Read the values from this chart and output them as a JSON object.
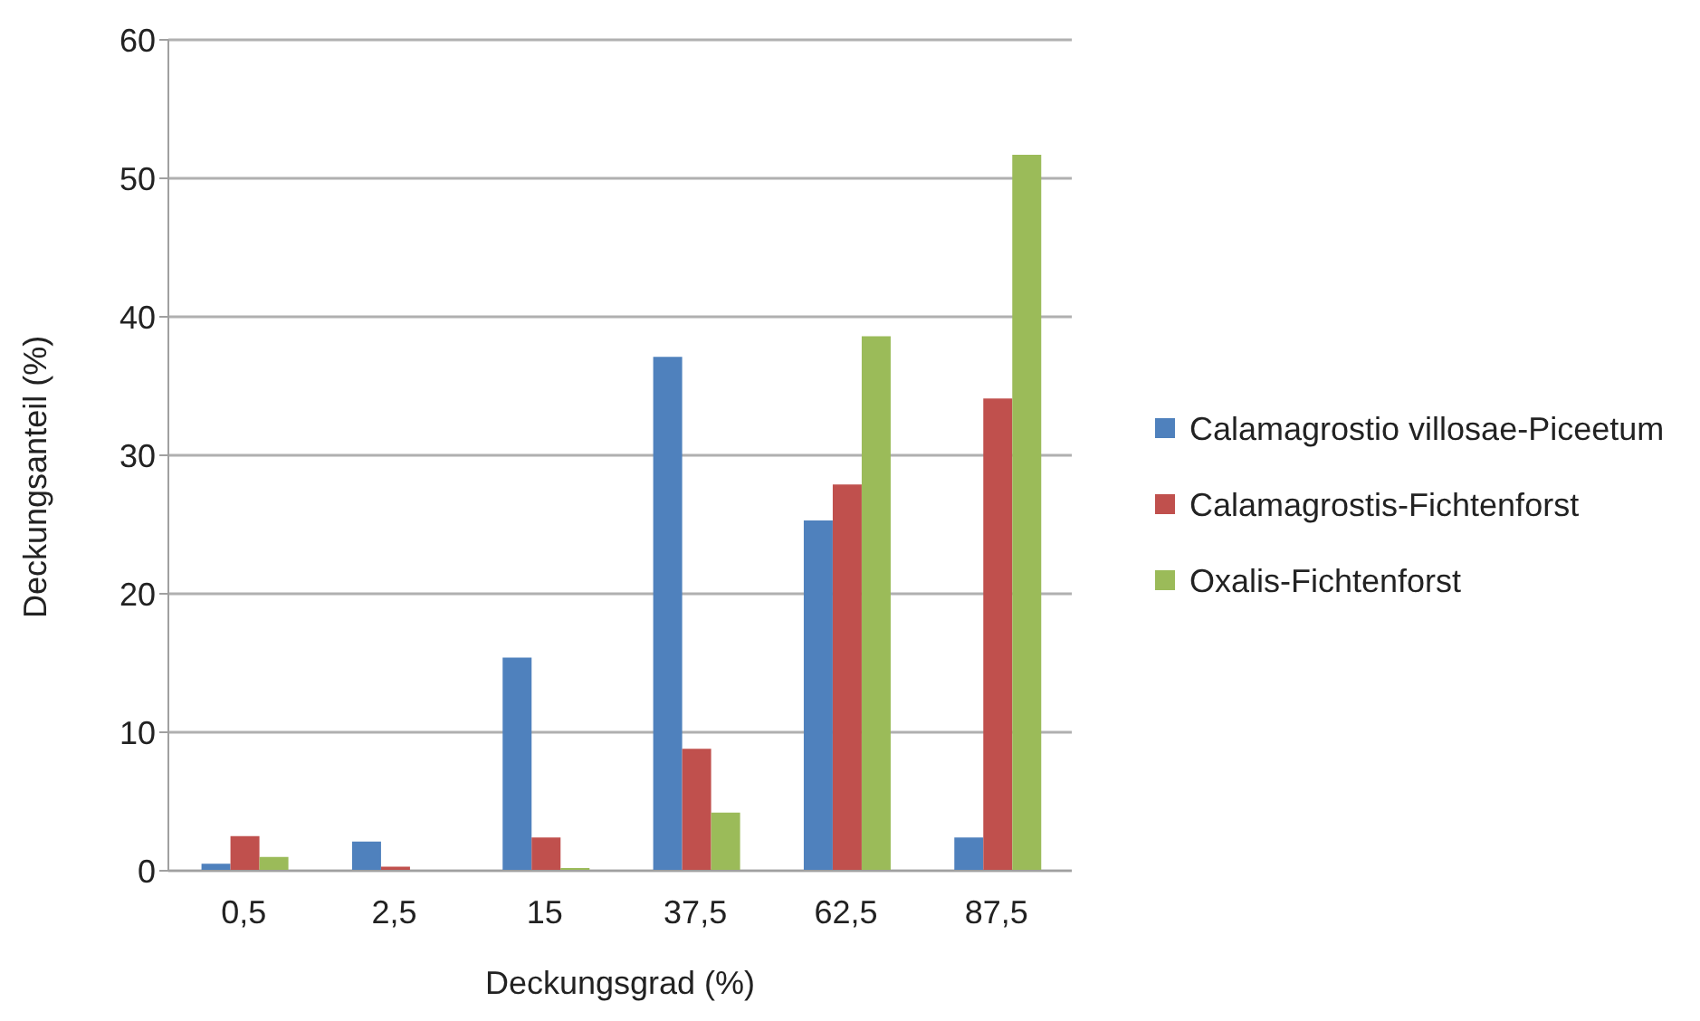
{
  "chart_data": {
    "type": "bar",
    "xlabel": "Deckungsgrad (%)",
    "ylabel": "Deckungsanteil (%)",
    "categories": [
      "0,5",
      "2,5",
      "15",
      "37,5",
      "62,5",
      "87,5"
    ],
    "series": [
      {
        "name": "Calamagrostio villosae-Piceetum",
        "color": "#4f81bd",
        "values": [
          0.5,
          2.1,
          15.4,
          37.1,
          25.3,
          2.4
        ]
      },
      {
        "name": "Calamagrostis-Fichtenforst",
        "color": "#c0504d",
        "values": [
          2.5,
          0.3,
          2.4,
          8.8,
          27.9,
          34.1
        ]
      },
      {
        "name": "Oxalis-Fichtenforst",
        "color": "#9bbb59",
        "values": [
          1.0,
          0,
          0.2,
          4.2,
          38.6,
          51.7
        ]
      }
    ],
    "ylim": [
      0,
      60
    ],
    "yticks": [
      0,
      10,
      20,
      30,
      40,
      50,
      60
    ],
    "grid": "y",
    "legend": "right"
  }
}
